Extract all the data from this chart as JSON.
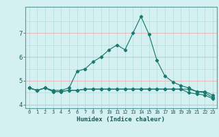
{
  "xlabel": "Humidex (Indice chaleur)",
  "ylabel": "",
  "background_color": "#d4f0f0",
  "grid_color_v": "#b8e0e0",
  "grid_color_h": "#e8b0b0",
  "line_color": "#1a7a6e",
  "x_labels": [
    "0",
    "1",
    "2",
    "3",
    "4",
    "5",
    "6",
    "7",
    "8",
    "9",
    "10",
    "11",
    "12",
    "13",
    "14",
    "15",
    "16",
    "17",
    "18",
    "19",
    "20",
    "21",
    "22",
    "23"
  ],
  "x_values": [
    0,
    1,
    2,
    3,
    4,
    5,
    6,
    7,
    8,
    9,
    10,
    11,
    12,
    13,
    14,
    15,
    16,
    17,
    18,
    19,
    20,
    21,
    22,
    23
  ],
  "line1_y": [
    4.7,
    4.6,
    4.7,
    4.6,
    4.6,
    4.7,
    5.4,
    5.5,
    5.8,
    6.0,
    6.3,
    6.5,
    6.3,
    7.0,
    7.7,
    6.95,
    5.85,
    5.2,
    4.95,
    4.8,
    4.7,
    4.55,
    4.55,
    4.4
  ],
  "line2_y": [
    4.7,
    4.6,
    4.7,
    4.55,
    4.55,
    4.6,
    4.6,
    4.65,
    4.65,
    4.65,
    4.65,
    4.65,
    4.65,
    4.65,
    4.65,
    4.65,
    4.65,
    4.65,
    4.65,
    4.65,
    4.65,
    4.55,
    4.5,
    4.3
  ],
  "line3_y": [
    4.7,
    4.6,
    4.7,
    4.55,
    4.55,
    4.6,
    4.6,
    4.65,
    4.65,
    4.65,
    4.65,
    4.65,
    4.65,
    4.65,
    4.65,
    4.65,
    4.65,
    4.65,
    4.65,
    4.65,
    4.5,
    4.45,
    4.4,
    4.25
  ],
  "ylim": [
    3.85,
    8.1
  ],
  "yticks": [
    4,
    5,
    6,
    7
  ],
  "xlim": [
    -0.5,
    23.5
  ]
}
